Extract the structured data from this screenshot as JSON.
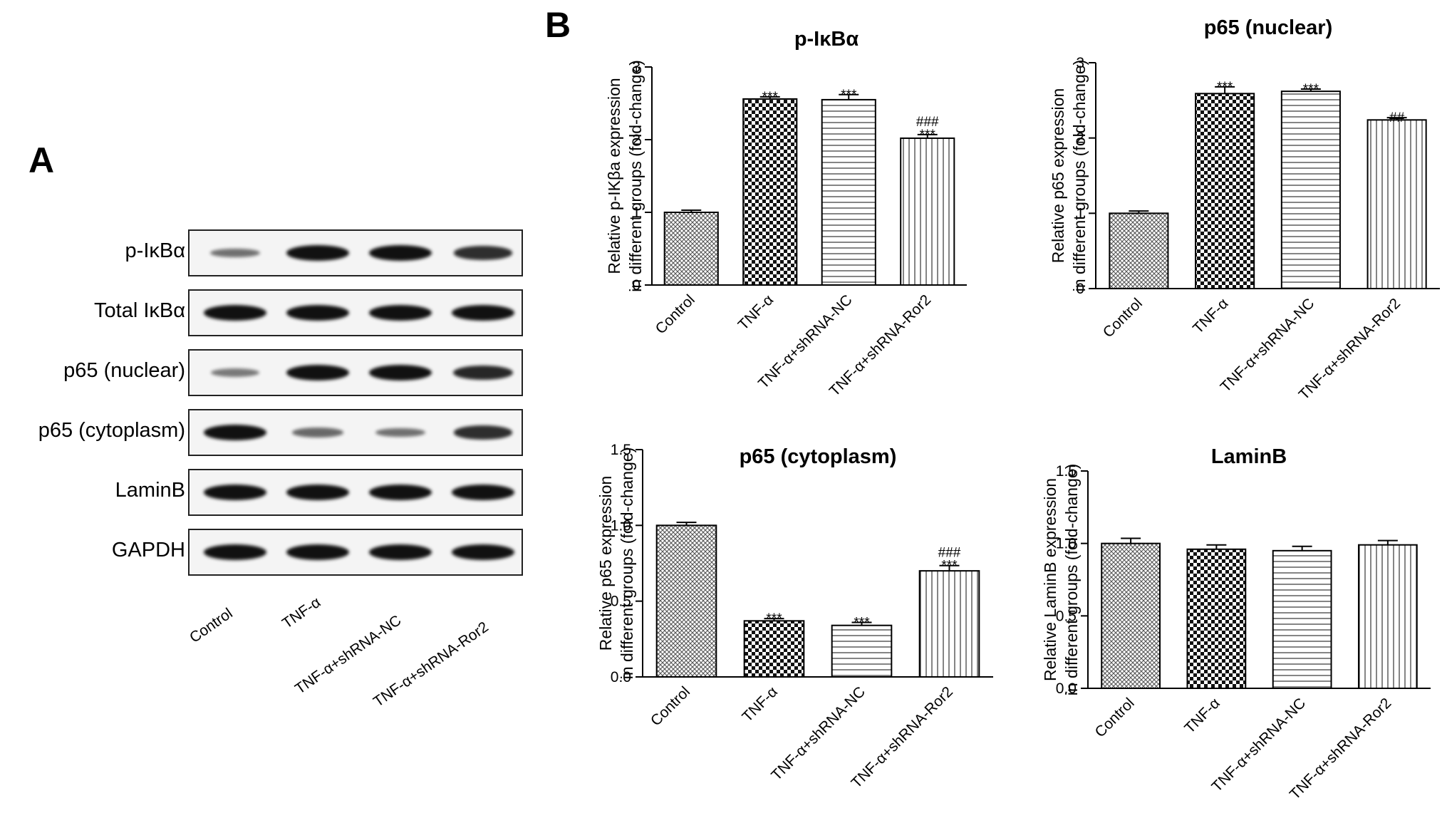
{
  "panel_a": {
    "letter": "A",
    "blot_rows": [
      {
        "label": "p-IκBα",
        "intensity": [
          0.35,
          1.0,
          1.0,
          0.8
        ]
      },
      {
        "label": "Total IκBα",
        "intensity": [
          1.0,
          1.0,
          1.0,
          1.0
        ]
      },
      {
        "label": "p65 (nuclear)",
        "intensity": [
          0.3,
          1.0,
          1.0,
          0.85
        ]
      },
      {
        "label": "p65 (cytoplasm)",
        "intensity": [
          1.0,
          0.4,
          0.35,
          0.8
        ]
      },
      {
        "label": "LaminB",
        "intensity": [
          1.0,
          1.0,
          1.0,
          1.0
        ]
      },
      {
        "label": "GAPDH",
        "intensity": [
          1.0,
          1.0,
          1.0,
          1.0
        ]
      }
    ],
    "lanes": [
      "Control",
      "TNF-α",
      "TNF-α+shRNA-NC",
      "TNF-α+shRNA-Ror2"
    ]
  },
  "panel_b_letter": "B",
  "chart_data": [
    {
      "type": "bar",
      "title": "p-IκBα",
      "ylabel": [
        "Relative p-IKβa expression",
        "in different groups (fold-change)"
      ],
      "categories": [
        "Control",
        "TNF-α",
        "TNF-α+shRNA-NC",
        "TNF-α+shRNA-Ror2"
      ],
      "values": [
        1.0,
        2.56,
        2.55,
        2.02
      ],
      "errors": [
        0.03,
        0.03,
        0.07,
        0.05
      ],
      "ylim": [
        0,
        3
      ],
      "yticks": [
        "0",
        "1",
        "2",
        "3"
      ],
      "annotations": [
        "",
        "***",
        "***",
        "###\n***"
      ],
      "patterns": [
        "crosshatch-fine",
        "checker",
        "horizontal",
        "vertical"
      ]
    },
    {
      "type": "bar",
      "title": "p65 (nuclear)",
      "ylabel": [
        "Relative p65 expression",
        "in different groups (fold-change)"
      ],
      "categories": [
        "Control",
        "TNF-α",
        "TNF-α+shRNA-NC",
        "TNF-α+shRNA-Ror2"
      ],
      "values": [
        1.0,
        2.59,
        2.62,
        2.24
      ],
      "errors": [
        0.03,
        0.09,
        0.03,
        0.03
      ],
      "ylim": [
        0,
        3
      ],
      "yticks": [
        "0",
        "1",
        "2",
        "3"
      ],
      "annotations": [
        "",
        "***",
        "***",
        "##"
      ],
      "patterns": [
        "crosshatch-fine",
        "checker",
        "horizontal",
        "vertical"
      ]
    },
    {
      "type": "bar",
      "title": "p65 (cytoplasm)",
      "ylabel": [
        "Relative p65 expression",
        "in different groups (fold-change)"
      ],
      "categories": [
        "Control",
        "TNF-α",
        "TNF-α+shRNA-NC",
        "TNF-α+shRNA-Ror2"
      ],
      "values": [
        1.0,
        0.37,
        0.34,
        0.7
      ],
      "errors": [
        0.02,
        0.015,
        0.02,
        0.035
      ],
      "ylim": [
        0,
        1.5
      ],
      "yticks": [
        "0.0",
        "0.5",
        "1.0",
        "1.5"
      ],
      "annotations": [
        "",
        "***",
        "***",
        "###\n***"
      ],
      "patterns": [
        "crosshatch-fine",
        "checker",
        "horizontal",
        "vertical"
      ]
    },
    {
      "type": "bar",
      "title": "LaminB",
      "ylabel": [
        "Relative LaminB expression",
        "in different groups (fold-change)"
      ],
      "categories": [
        "Control",
        "TNF-α",
        "TNF-α+shRNA-NC",
        "TNF-α+shRNA-Ror2"
      ],
      "values": [
        1.0,
        0.96,
        0.95,
        0.99
      ],
      "errors": [
        0.035,
        0.03,
        0.03,
        0.03
      ],
      "ylim": [
        0,
        1.5
      ],
      "yticks": [
        "0.0",
        "0.5",
        "1.0",
        "1.5"
      ],
      "annotations": [
        "",
        "",
        "",
        ""
      ],
      "patterns": [
        "crosshatch-fine",
        "checker",
        "horizontal",
        "vertical"
      ]
    }
  ]
}
